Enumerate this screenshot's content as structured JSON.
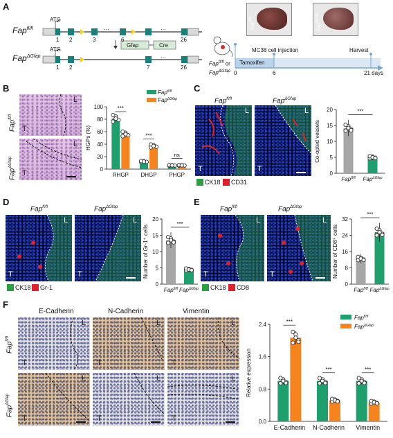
{
  "panels": {
    "A": "A",
    "B": "B",
    "C": "C",
    "D": "D",
    "E": "E",
    "F": "F"
  },
  "panelA": {
    "gene_top_italic": "Fap",
    "gene_top_sup": "fl/fl",
    "gene_bot_italic": "Fap",
    "gene_bot_sup": "ΔGfap",
    "atg": "ATG",
    "exon_labels_top": [
      "1",
      "2",
      "3",
      "6",
      "26"
    ],
    "exon_labels_bot": [
      "1",
      "2",
      "7",
      "26"
    ],
    "ellipsis": "···",
    "gfap": "Gfap",
    "cre": "Cre",
    "mouse_label_1": "Fap",
    "mouse_label_1_sup": "fl/fl",
    "mouse_or": "or",
    "mouse_label_2": "Fap",
    "mouse_label_2_sup": "ΔGfap",
    "liver_label_1": "Fap",
    "liver_label_1_sup": "fl/fl",
    "liver_label_2": "Fap",
    "liver_label_2_sup": "ΔGfap",
    "timeline_injection": "MC38 cell injection",
    "timeline_harvest": "Harvest",
    "timeline_drug": "Tamoxifen",
    "timeline_ticks": [
      "0",
      "6",
      "21 days"
    ]
  },
  "panelB": {
    "row_labels": [
      "Fap",
      "Fap"
    ],
    "row_sups": [
      "fl/fl",
      "ΔGfap"
    ],
    "img_L": "L",
    "img_T": "T",
    "legend_1": "Fap",
    "legend_1_sup": "fl/fl",
    "legend_2": "Fap",
    "legend_2_sup": "ΔGfap",
    "sig": [
      "***",
      "***",
      "ns"
    ]
  },
  "panelC": {
    "col_labels": [
      "Fap",
      "Fap"
    ],
    "col_sups": [
      "fl/fl",
      "ΔGfap"
    ],
    "img_L": "L",
    "img_T": "T",
    "legend_green": "CK18",
    "legend_red": "CD31",
    "sig": "***"
  },
  "panelD": {
    "col_labels": [
      "Fap",
      "Fap"
    ],
    "col_sups": [
      "fl/fl",
      "ΔGfap"
    ],
    "img_L": "L",
    "img_T": "T",
    "legend_green": "CK18",
    "legend_red": "Gr-1",
    "sig": "***"
  },
  "panelE": {
    "col_labels": [
      "Fap",
      "Fap"
    ],
    "col_sups": [
      "fl/fl",
      "ΔGfap"
    ],
    "img_L": "L",
    "img_T": "T",
    "legend_green": "CK18",
    "legend_red": "CD8",
    "sig": "***"
  },
  "panelF": {
    "col_labels": [
      "E-Cadherin",
      "N-Cadherin",
      "Vimentin"
    ],
    "row_labels": [
      "Fap",
      "Fap"
    ],
    "row_sups": [
      "fl/fl",
      "ΔGfap"
    ],
    "img_L": "L",
    "img_T": "T",
    "legend_1": "Fap",
    "legend_1_sup": "fl/fl",
    "legend_2": "Fap",
    "legend_2_sup": "ΔGfap",
    "sig": [
      "***",
      "***",
      "***"
    ]
  },
  "colors": {
    "green": "#1f9e6e",
    "orange": "#f5841f",
    "gray": "#a6a6a6",
    "exon": "#1b7f7a"
  },
  "chart_data": [
    {
      "id": "B",
      "type": "bar",
      "categories": [
        "RHGP",
        "DHGP",
        "PHGP"
      ],
      "ylabel": "HGPs (%)",
      "ylim": [
        0,
        100
      ],
      "yticks": [
        "0",
        "20",
        "40",
        "60",
        "80",
        "100"
      ],
      "series": [
        {
          "name": "Fap fl/fl",
          "values": [
            81,
            12,
            6
          ]
        },
        {
          "name": "Fap ΔGfap",
          "values": [
            56,
            37,
            6
          ]
        }
      ]
    },
    {
      "id": "C",
      "type": "bar",
      "categories": [
        "Fap fl/fl",
        "Fap ΔGfap"
      ],
      "ylabel": "Co-opted vessels",
      "ylim": [
        0,
        20
      ],
      "yticks": [
        "0",
        "5",
        "10",
        "15",
        "20"
      ],
      "values": [
        14.2,
        5.0
      ]
    },
    {
      "id": "D",
      "type": "bar",
      "categories": [
        "Fap fl/fl",
        "Fap ΔGfap"
      ],
      "ylabel": "Number of Gr-1⁺ cells",
      "ylim": [
        0,
        20
      ],
      "yticks": [
        "0",
        "5",
        "10",
        "15",
        "20"
      ],
      "values": [
        13.5,
        4.5
      ]
    },
    {
      "id": "E",
      "type": "bar",
      "categories": [
        "Fap fl/fl",
        "Fap ΔGfap"
      ],
      "ylabel": "Number of CD8⁺ cells",
      "ylim": [
        0,
        32
      ],
      "yticks": [
        "0",
        "8",
        "16",
        "24",
        "32"
      ],
      "values": [
        12.5,
        25.5
      ]
    },
    {
      "id": "F",
      "type": "bar",
      "categories": [
        "E-Cadherin",
        "N-Cadherin",
        "Vimentin"
      ],
      "ylabel": "Relative expression",
      "ylim": [
        0,
        2.4
      ],
      "yticks": [
        "0.0",
        "0.8",
        "1.6",
        "2.4"
      ],
      "series": [
        {
          "name": "Fap fl/fl",
          "values": [
            1.0,
            1.0,
            1.0
          ]
        },
        {
          "name": "Fap ΔGfap",
          "values": [
            2.07,
            0.52,
            0.47
          ]
        }
      ]
    }
  ]
}
